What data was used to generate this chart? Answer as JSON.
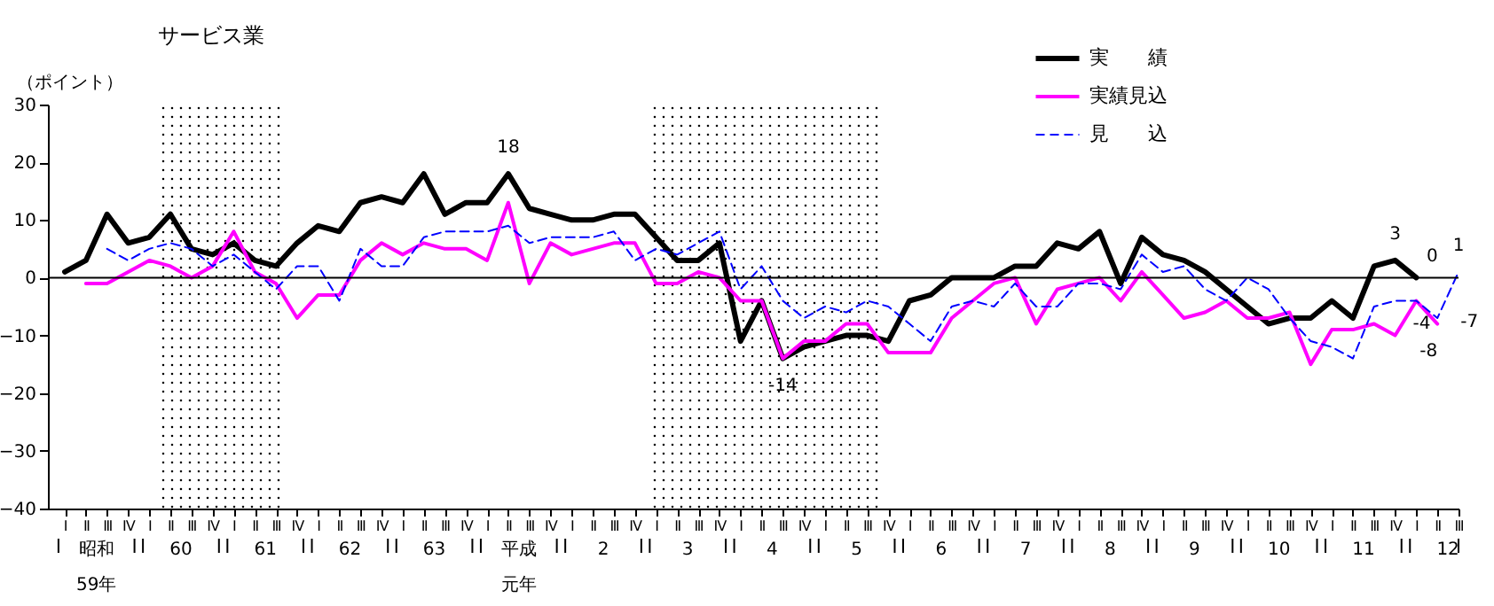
{
  "chart_data": {
    "type": "line",
    "title": "サービス業",
    "ylabel": "（ポイント）",
    "categories": [
      "Ⅰ",
      "Ⅱ",
      "Ⅲ",
      "Ⅳ",
      "Ⅰ",
      "Ⅱ",
      "Ⅲ",
      "Ⅳ",
      "Ⅰ",
      "Ⅱ",
      "Ⅲ",
      "Ⅳ",
      "Ⅰ",
      "Ⅱ",
      "Ⅲ",
      "Ⅳ",
      "Ⅰ",
      "Ⅱ",
      "Ⅲ",
      "Ⅳ",
      "Ⅰ",
      "Ⅱ",
      "Ⅲ",
      "Ⅳ",
      "Ⅰ",
      "Ⅱ",
      "Ⅲ",
      "Ⅳ",
      "Ⅰ",
      "Ⅱ",
      "Ⅲ",
      "Ⅳ",
      "Ⅰ",
      "Ⅱ",
      "Ⅲ",
      "Ⅳ",
      "Ⅰ",
      "Ⅱ",
      "Ⅲ",
      "Ⅳ",
      "Ⅰ",
      "Ⅱ",
      "Ⅲ",
      "Ⅳ",
      "Ⅰ",
      "Ⅱ",
      "Ⅲ",
      "Ⅳ",
      "Ⅰ",
      "Ⅱ",
      "Ⅲ",
      "Ⅳ",
      "Ⅰ",
      "Ⅱ",
      "Ⅲ",
      "Ⅳ",
      "Ⅰ",
      "Ⅱ",
      "Ⅲ",
      "Ⅳ",
      "Ⅰ",
      "Ⅱ",
      "Ⅲ",
      "Ⅳ",
      "Ⅰ",
      "Ⅱ",
      "Ⅲ"
    ],
    "series": [
      {
        "name": "実　　績",
        "color": "#000000",
        "line_style": "solid",
        "values": [
          1,
          3,
          11,
          6,
          7,
          11,
          5,
          4,
          6,
          3,
          2,
          6,
          9,
          8,
          13,
          14,
          13,
          18,
          11,
          13,
          13,
          18,
          12,
          11,
          10,
          10,
          11,
          11,
          7,
          3,
          3,
          6,
          -11,
          -4,
          -14,
          -12,
          -11,
          -10,
          -10,
          -11,
          -4,
          -3,
          0,
          0,
          0,
          2,
          2,
          6,
          5,
          8,
          -1,
          7,
          4,
          3,
          1,
          -2,
          -5,
          -8,
          -7,
          -7,
          -4,
          -7,
          2,
          3,
          0,
          null,
          null
        ],
        "value_labels": [
          null,
          null,
          null,
          null,
          null,
          null,
          null,
          null,
          null,
          null,
          null,
          null,
          null,
          null,
          null,
          null,
          null,
          null,
          null,
          null,
          null,
          "18",
          null,
          null,
          null,
          null,
          null,
          null,
          null,
          null,
          null,
          null,
          null,
          null,
          "-14",
          null,
          null,
          null,
          null,
          null,
          null,
          null,
          null,
          null,
          null,
          null,
          null,
          null,
          null,
          null,
          null,
          null,
          null,
          null,
          null,
          null,
          null,
          null,
          null,
          null,
          null,
          null,
          null,
          "3",
          "0",
          null,
          null
        ]
      },
      {
        "name": "実績見込",
        "color": "#ff00ff",
        "line_style": "solid",
        "values": [
          null,
          -1,
          -1,
          1,
          3,
          2,
          0,
          2,
          8,
          1,
          -1,
          -7,
          -3,
          -3,
          3,
          6,
          4,
          6,
          5,
          5,
          3,
          13,
          -1,
          6,
          4,
          5,
          6,
          6,
          -1,
          -1,
          1,
          0,
          -4,
          -4,
          -14,
          -11,
          -11,
          -8,
          -8,
          -13,
          -13,
          -13,
          -7,
          -4,
          -1,
          0,
          -8,
          -2,
          -1,
          0,
          -4,
          1,
          -3,
          -7,
          -6,
          -4,
          -7,
          -7,
          -6,
          -15,
          -9,
          -9,
          -8,
          -10,
          -4,
          -8,
          null
        ],
        "value_labels": [
          null,
          null,
          null,
          null,
          null,
          null,
          null,
          null,
          null,
          null,
          null,
          null,
          null,
          null,
          null,
          null,
          null,
          null,
          null,
          null,
          null,
          null,
          null,
          null,
          null,
          null,
          null,
          null,
          null,
          null,
          null,
          null,
          null,
          null,
          null,
          null,
          null,
          null,
          null,
          null,
          null,
          null,
          null,
          null,
          null,
          null,
          null,
          null,
          null,
          null,
          null,
          null,
          null,
          null,
          null,
          null,
          null,
          null,
          null,
          null,
          null,
          null,
          null,
          null,
          null,
          "-8",
          null
        ]
      },
      {
        "name": "見　　込",
        "color": "#0000ff",
        "line_style": "dashed",
        "values": [
          null,
          null,
          5,
          3,
          5,
          6,
          5,
          2,
          4,
          1,
          -2,
          2,
          2,
          -4,
          5,
          2,
          2,
          7,
          8,
          8,
          8,
          9,
          6,
          7,
          7,
          7,
          8,
          3,
          5,
          4,
          6,
          8,
          -2,
          2,
          -4,
          -7,
          -5,
          -6,
          -4,
          -5,
          -8,
          -11,
          -5,
          -4,
          -5,
          -1,
          -5,
          -5,
          -1,
          -1,
          -2,
          4,
          1,
          2,
          -2,
          -4,
          0,
          -2,
          -7,
          -11,
          -12,
          -14,
          -5,
          -4,
          -4,
          -7,
          1
        ],
        "value_labels": [
          null,
          null,
          null,
          null,
          null,
          null,
          null,
          null,
          null,
          null,
          null,
          null,
          null,
          null,
          null,
          null,
          null,
          null,
          null,
          null,
          null,
          null,
          null,
          null,
          null,
          null,
          null,
          null,
          null,
          null,
          null,
          null,
          null,
          null,
          null,
          null,
          null,
          null,
          null,
          null,
          null,
          null,
          null,
          null,
          null,
          null,
          null,
          null,
          null,
          null,
          null,
          null,
          null,
          null,
          null,
          null,
          null,
          null,
          null,
          null,
          null,
          null,
          null,
          null,
          "-4",
          "-7",
          "1"
        ]
      }
    ],
    "ylim": [
      -40,
      30
    ],
    "yticks": [
      -40,
      -30,
      -20,
      -10,
      0,
      10,
      20,
      30
    ],
    "ref_lines": [
      {
        "axis": "y",
        "value": 0
      }
    ],
    "annotations": [
      "昭和59年",
      "60",
      "61",
      "62",
      "63",
      "平成元年",
      "2",
      "3",
      "4",
      "5",
      "6",
      "7",
      "8",
      "9",
      "10",
      "11",
      "12"
    ],
    "grid": false,
    "legend": "top right",
    "marker": "none"
  }
}
